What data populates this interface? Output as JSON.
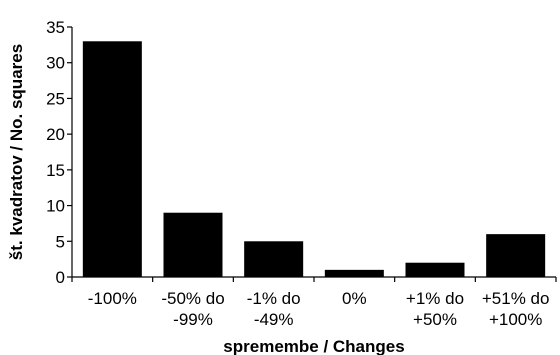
{
  "chart_data": {
    "type": "bar",
    "categories": [
      [
        "-100%"
      ],
      [
        "-50% do",
        "-99%"
      ],
      [
        "-1% do",
        "-49%"
      ],
      [
        "0%"
      ],
      [
        "+1% do",
        "+50%"
      ],
      [
        "+51% do",
        "+100%"
      ]
    ],
    "values": [
      33,
      9,
      5,
      1,
      2,
      6
    ],
    "xlabel": "spremembe / Changes",
    "ylabel": "št. kvadratov / No. squares",
    "ylim": [
      0,
      35
    ],
    "yticks": [
      0,
      5,
      10,
      15,
      20,
      25,
      30,
      35
    ],
    "grid": false,
    "bar_color": "#000000"
  }
}
